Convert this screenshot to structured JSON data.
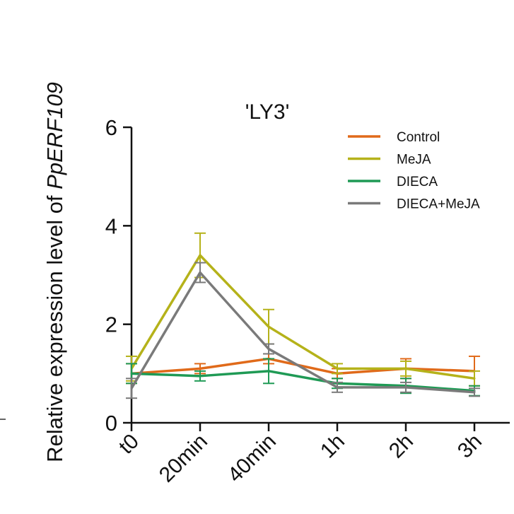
{
  "chart_data": {
    "type": "line",
    "title": "'LY3'",
    "ylabel_plain": "Relative expression level of ",
    "ylabel_gene": "PpERF109",
    "xlabel": "",
    "categories": [
      "t0",
      "20min",
      "40min",
      "1h",
      "2h",
      "3h"
    ],
    "ylim": [
      0,
      6
    ],
    "yticks": [
      0,
      2,
      4,
      6
    ],
    "ytick_labels": [
      "0",
      "2",
      "4",
      "6"
    ],
    "grid": false,
    "legend_position": "top-right",
    "series": [
      {
        "name": "Control",
        "color": "#e06a1a",
        "values": [
          1.0,
          1.1,
          1.3,
          1.0,
          1.1,
          1.05
        ],
        "errors": [
          0.2,
          0.1,
          0.1,
          0.1,
          0.2,
          0.3
        ]
      },
      {
        "name": "MeJA",
        "color": "#b5b21a",
        "values": [
          1.1,
          3.4,
          1.95,
          1.1,
          1.1,
          0.9
        ],
        "errors": [
          0.25,
          0.45,
          0.35,
          0.1,
          0.15,
          0.15
        ]
      },
      {
        "name": "DIECA",
        "color": "#1f9a55",
        "values": [
          1.0,
          0.95,
          1.05,
          0.8,
          0.75,
          0.65
        ],
        "errors": [
          0.2,
          0.1,
          0.25,
          0.1,
          0.15,
          0.1
        ]
      },
      {
        "name": "DIECA+MeJA",
        "color": "#7a7a7a",
        "values": [
          0.7,
          3.05,
          1.5,
          0.72,
          0.72,
          0.62
        ],
        "errors": [
          0.2,
          0.2,
          0.1,
          0.1,
          0.1,
          0.08
        ]
      }
    ]
  }
}
